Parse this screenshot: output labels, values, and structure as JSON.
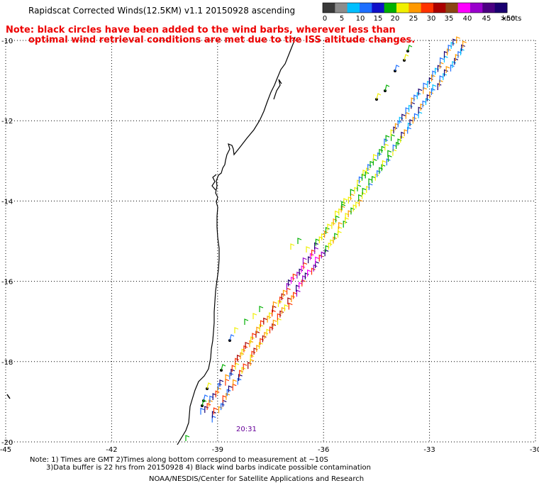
{
  "header": {
    "title": "Rapidscat Corrected Winds(12.5KM) v1.1 20150928 ascending",
    "note_line1": "Note: black circles have been added to the wind barbs, wherever less than",
    "note_line2": "optimal wind retrieval conditions are met due to the ISS altitude changes."
  },
  "colorbar": {
    "labels": [
      "0",
      "5",
      "10",
      "15",
      "20",
      "25",
      "30",
      "35",
      "40",
      "45",
      ">50"
    ],
    "unit": "knots",
    "colors": [
      "#3a3a3a",
      "#8c8c8c",
      "#00bfff",
      "#1e6fff",
      "#1010c8",
      "#00b000",
      "#f0f000",
      "#ff9900",
      "#ff3300",
      "#aa0000",
      "#8b4513",
      "#ff00ff",
      "#9900cc",
      "#4b0082",
      "#1a0070"
    ]
  },
  "map": {
    "x_ticks": [
      "-45",
      "-42",
      "-39",
      "-36",
      "-33",
      "-30"
    ],
    "y_ticks": [
      "-10",
      "-12",
      "-14",
      "-16",
      "-18",
      "-20"
    ],
    "x_range": [
      -45,
      -30
    ],
    "y_range": [
      -20,
      -10
    ],
    "pass_time": "20:31"
  },
  "footer": {
    "line1": "Note: 1) Times are GMT 2)Times along bottom correspond to measurement at ~10S",
    "line2": "3)Data buffer is 22 hrs from 20150928 4) Black wind barbs indicate possible contamination",
    "line3": "NOAA/NESDIS/Center for Satellite Applications and Research"
  }
}
